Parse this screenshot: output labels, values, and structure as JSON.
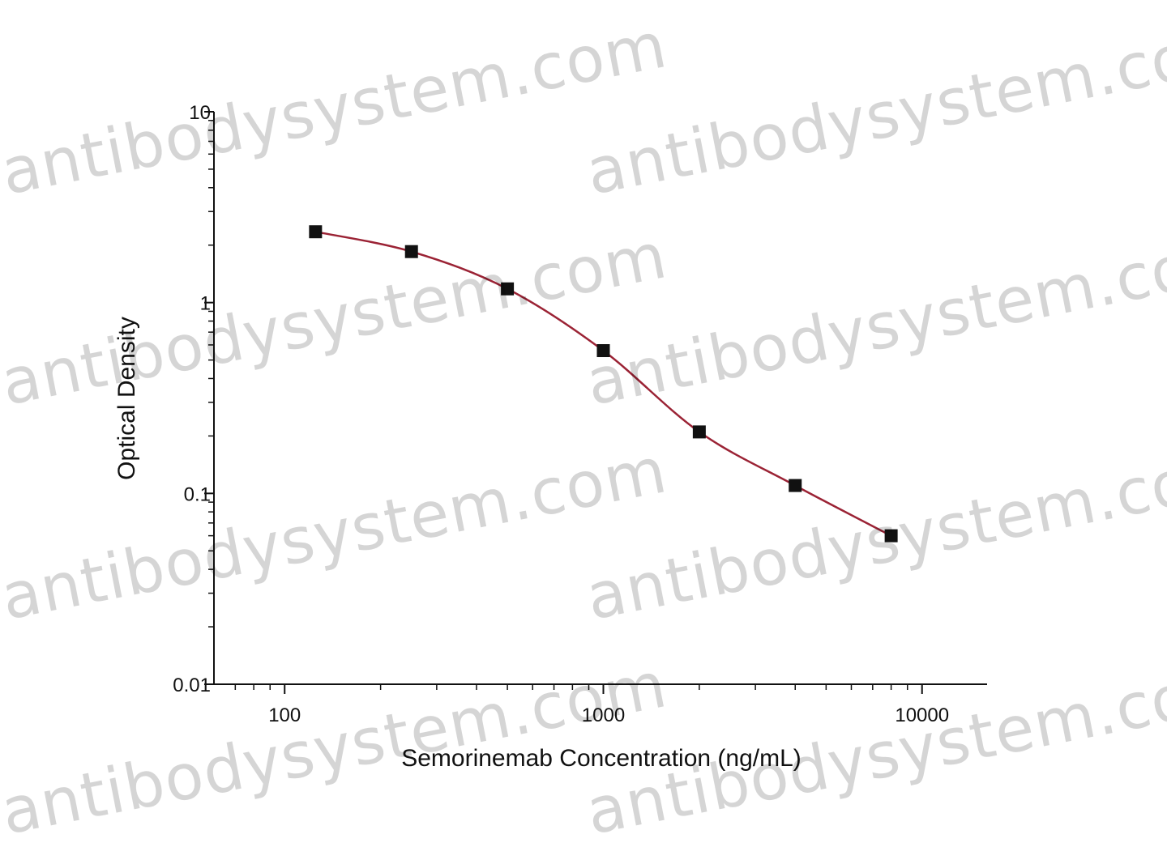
{
  "chart_data": {
    "type": "scatter",
    "title": "",
    "xlabel": "Semorinemab Concentration (ng/mL)",
    "ylabel": "Optical Density",
    "x_scale": "log",
    "y_scale": "log",
    "xlim": [
      60,
      16000
    ],
    "ylim": [
      0.01,
      10
    ],
    "x_ticks": [
      100,
      1000,
      10000
    ],
    "x_tick_labels": [
      "100",
      "1000",
      "10000"
    ],
    "y_ticks": [
      0.01,
      0.1,
      1,
      10
    ],
    "y_tick_labels": [
      "0.01",
      "0.1",
      "1",
      "10"
    ],
    "grid": false,
    "legend": "none",
    "series": [
      {
        "x": [
          125,
          250,
          500,
          1000,
          2000,
          4000,
          8000
        ],
        "y": [
          2.35,
          1.85,
          1.18,
          0.56,
          0.21,
          0.11,
          0.06
        ],
        "marker": "square",
        "marker_color": "#111111",
        "fit_line": true,
        "fit_color": "#9b2335"
      }
    ]
  },
  "watermark": {
    "text": "antibodysystem.com",
    "color": "#000000"
  }
}
